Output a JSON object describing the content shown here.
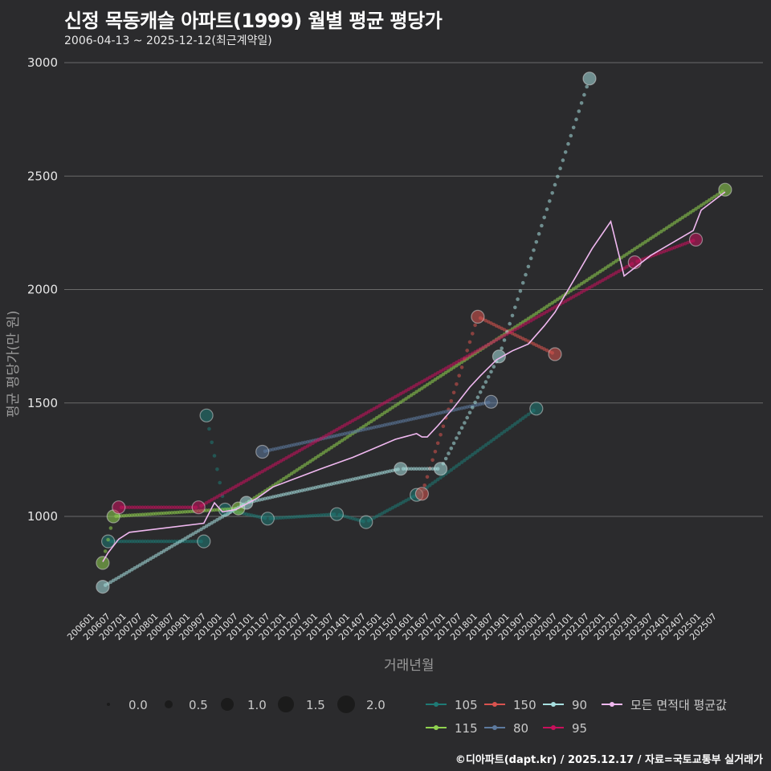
{
  "title": "신정 목동캐슬 아파트(1999) 월별 평균 평당가",
  "subtitle": "2006-04-13 ~ 2025-12-12(최근계약일)",
  "footer": "©디아파트(dapt.kr) / 2025.12.17 / 자료=국토교통부 실거래가",
  "chart_data": {
    "type": "line",
    "title": "신정 목동캐슬 아파트(1999) 월별 평균 평당가",
    "xlabel": "거래년월",
    "ylabel": "평균 평당가(만 원)",
    "ylim": [
      580,
      3060
    ],
    "yticks": [
      1000,
      1500,
      2000,
      2500,
      3000
    ],
    "xticks": [
      "200601",
      "200607",
      "200701",
      "200707",
      "200801",
      "200807",
      "200901",
      "200907",
      "201001",
      "201007",
      "201101",
      "201107",
      "201201",
      "201207",
      "201301",
      "201307",
      "201401",
      "201407",
      "201501",
      "201507",
      "201601",
      "201607",
      "201701",
      "201707",
      "201801",
      "201807",
      "201901",
      "201907",
      "202001",
      "202007",
      "202101",
      "202107",
      "202201",
      "202207",
      "202301",
      "202307",
      "202401",
      "202407",
      "202501",
      "202507"
    ],
    "size_legend": {
      "title": "",
      "values": [
        "0.0",
        "0.5",
        "1.0",
        "1.5",
        "2.0"
      ]
    },
    "series": [
      {
        "name": "105",
        "color": "#1e7a75",
        "points": [
          [
            "2006-06",
            890
          ],
          [
            "2009-06",
            890
          ],
          [
            "2009-07",
            1445
          ],
          [
            "2010-02",
            1030
          ],
          [
            "2011-06",
            990
          ],
          [
            "2013-08",
            1010
          ],
          [
            "2014-07",
            975
          ],
          [
            "2016-02",
            1095
          ],
          [
            "2019-11",
            1475
          ]
        ]
      },
      {
        "name": "115",
        "color": "#8fd14f",
        "points": [
          [
            "2006-04",
            795
          ],
          [
            "2006-08",
            1000
          ],
          [
            "2010-07",
            1035
          ],
          [
            "2025-10",
            2440
          ]
        ]
      },
      {
        "name": "150",
        "color": "#d9534f",
        "points": [
          [
            "2016-04",
            1100
          ],
          [
            "2018-01",
            1880
          ],
          [
            "2020-06",
            1715
          ]
        ]
      },
      {
        "name": "80",
        "color": "#5d7a9e",
        "points": [
          [
            "2011-04",
            1285
          ],
          [
            "2018-06",
            1505
          ]
        ]
      },
      {
        "name": "90",
        "color": "#a8e0e0",
        "points": [
          [
            "2006-04",
            690
          ],
          [
            "2010-10",
            1060
          ],
          [
            "2015-08",
            1210
          ],
          [
            "2016-11",
            1210
          ],
          [
            "2018-09",
            1705
          ],
          [
            "2021-07",
            2930
          ]
        ]
      },
      {
        "name": "95",
        "color": "#c8105c",
        "points": [
          [
            "2006-10",
            1040
          ],
          [
            "2009-04",
            1040
          ],
          [
            "2022-12",
            2120
          ],
          [
            "2024-11",
            2220
          ]
        ]
      },
      {
        "name": "모든 면적대 평균값",
        "color": "#f0b8f0",
        "points": [
          [
            "2006-04",
            800
          ],
          [
            "2006-06",
            840
          ],
          [
            "2006-10",
            900
          ],
          [
            "2007-02",
            930
          ],
          [
            "2009-06",
            970
          ],
          [
            "2009-10",
            1060
          ],
          [
            "2010-01",
            1020
          ],
          [
            "2010-06",
            1030
          ],
          [
            "2011-02",
            1080
          ],
          [
            "2011-08",
            1130
          ],
          [
            "2013-02",
            1210
          ],
          [
            "2014-02",
            1260
          ],
          [
            "2014-08",
            1290
          ],
          [
            "2015-06",
            1340
          ],
          [
            "2016-02",
            1365
          ],
          [
            "2016-04",
            1350
          ],
          [
            "2016-06",
            1350
          ],
          [
            "2016-10",
            1400
          ],
          [
            "2017-04",
            1480
          ],
          [
            "2017-10",
            1570
          ],
          [
            "2018-02",
            1620
          ],
          [
            "2018-08",
            1690
          ],
          [
            "2019-02",
            1730
          ],
          [
            "2019-08",
            1760
          ],
          [
            "2020-02",
            1840
          ],
          [
            "2020-06",
            1900
          ],
          [
            "2021-02",
            2060
          ],
          [
            "2021-08",
            2180
          ],
          [
            "2022-03",
            2300
          ],
          [
            "2022-08",
            2060
          ],
          [
            "2023-06",
            2150
          ],
          [
            "2024-10",
            2260
          ],
          [
            "2025-01",
            2350
          ],
          [
            "2025-10",
            2430
          ]
        ]
      }
    ]
  }
}
